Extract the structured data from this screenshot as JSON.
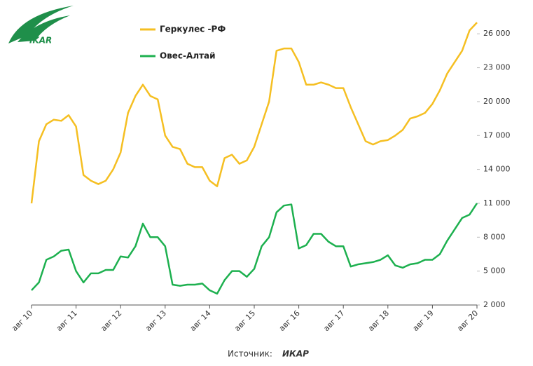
{
  "logo": "IKAR",
  "source": {
    "label": "Источник:",
    "name": "ИКАР"
  },
  "chart_data": {
    "type": "line",
    "categories": [
      "авг 10",
      null,
      null,
      null,
      null,
      null,
      "авг 11",
      null,
      null,
      null,
      null,
      null,
      "авг 12",
      null,
      null,
      null,
      null,
      null,
      "авг 13",
      null,
      null,
      null,
      null,
      null,
      "авг 14",
      null,
      null,
      null,
      null,
      null,
      "авг 15",
      null,
      null,
      null,
      null,
      null,
      "авг 16",
      null,
      null,
      null,
      null,
      null,
      "авг 17",
      null,
      null,
      null,
      null,
      null,
      "авг 18",
      null,
      null,
      null,
      null,
      null,
      "авг 19",
      null,
      null,
      null,
      null,
      null,
      "авг 20"
    ],
    "series": [
      {
        "name": "Геркулес -РФ",
        "color": "#f5bf22",
        "values": [
          11000,
          16500,
          18000,
          18400,
          18300,
          18800,
          17800,
          13500,
          13000,
          12700,
          13000,
          14000,
          15500,
          19000,
          20500,
          21500,
          20500,
          20200,
          17000,
          16000,
          15800,
          14500,
          14200,
          14200,
          13000,
          12500,
          15000,
          15300,
          14500,
          14800,
          16000,
          18000,
          20000,
          24500,
          24700,
          24700,
          23500,
          21500,
          21500,
          21700,
          21500,
          21200,
          21200,
          19500,
          18000,
          16500,
          16200,
          16500,
          16600,
          17000,
          17500,
          18500,
          18700,
          19000,
          19800,
          21000,
          22500,
          23500,
          24500,
          26300,
          27000
        ]
      },
      {
        "name": "Овес-Алтай",
        "color": "#1db04f",
        "values": [
          3300,
          4000,
          6000,
          6300,
          6800,
          6900,
          5000,
          4000,
          4800,
          4800,
          5100,
          5100,
          6300,
          6200,
          7200,
          9200,
          8000,
          8000,
          7200,
          3800,
          3700,
          3800,
          3800,
          3900,
          3300,
          3000,
          4200,
          5000,
          5000,
          4500,
          5200,
          7200,
          8000,
          10200,
          10800,
          10900,
          7000,
          7300,
          8300,
          8300,
          7600,
          7200,
          7200,
          5400,
          5600,
          5700,
          5800,
          6000,
          6400,
          5500,
          5300,
          5600,
          5700,
          6000,
          6000,
          6500,
          7700,
          8700,
          9700,
          10000,
          11000
        ]
      }
    ],
    "ylim": [
      2000,
      28000
    ],
    "yticks": [
      {
        "value": 2000,
        "label": "2 000"
      },
      {
        "value": 5000,
        "label": "5 000"
      },
      {
        "value": 8000,
        "label": "8 000"
      },
      {
        "value": 11000,
        "label": "11 000"
      },
      {
        "value": 14000,
        "label": "14 000"
      },
      {
        "value": 17000,
        "label": "17 000"
      },
      {
        "value": 20000,
        "label": "20 000"
      },
      {
        "value": 23000,
        "label": "23 000"
      },
      {
        "value": 26000,
        "label": "26 000"
      }
    ],
    "legend": "top-left"
  }
}
